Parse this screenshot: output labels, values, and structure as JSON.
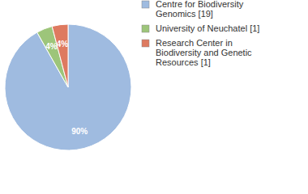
{
  "chart_data": {
    "type": "pie",
    "categories": [
      "Centre for Biodiversity Genomics [19]",
      "University of Neuchatel [1]",
      "Research Center in Biodiversity and Genetic Resources [1]"
    ],
    "values": [
      90,
      4,
      4
    ],
    "value_labels": [
      "90%",
      "4%",
      "4%"
    ],
    "colors": [
      "#9fbbe0",
      "#9dc57a",
      "#de7a60"
    ],
    "data_labels": true,
    "legend": "upper right"
  }
}
